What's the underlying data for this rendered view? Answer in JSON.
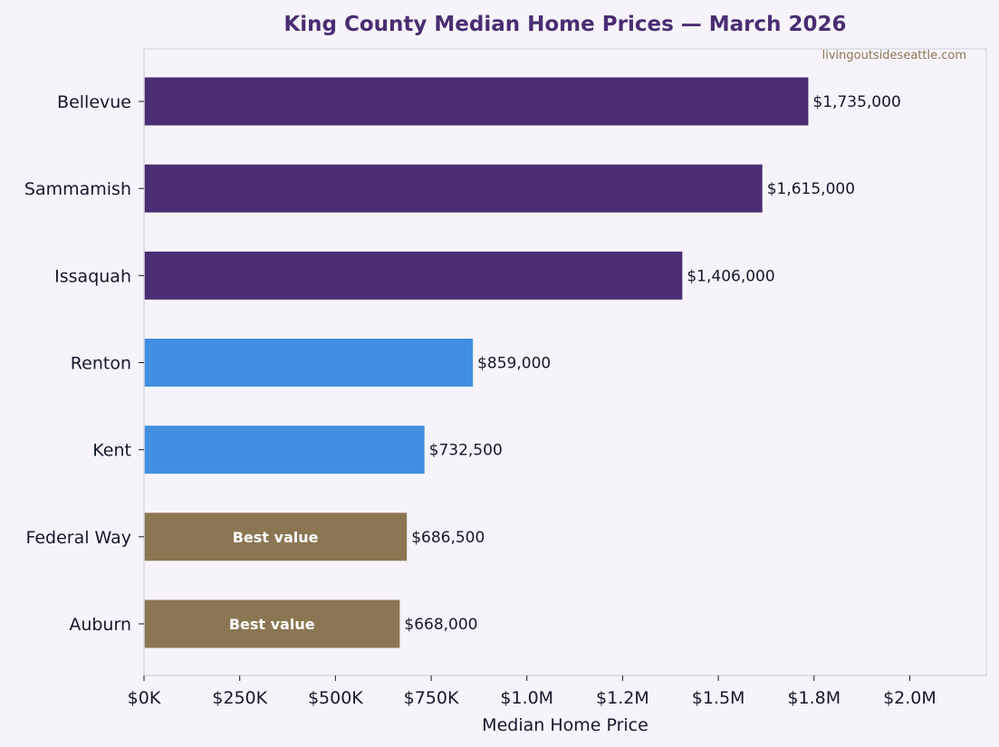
{
  "chart_data": {
    "type": "bar",
    "orientation": "horizontal",
    "title": "King County Median Home Prices — March 2026",
    "watermark": "livingoutsideseattle.com",
    "xlabel": "Median Home Price",
    "ylabel": "",
    "xlim": [
      0,
      2200000
    ],
    "x_ticks": [
      0,
      250000,
      500000,
      750000,
      1000000,
      1250000,
      1500000,
      1750000,
      2000000
    ],
    "x_tick_labels": [
      "$0K",
      "$250K",
      "$500K",
      "$750K",
      "$1.0M",
      "$1.2M",
      "$1.5M",
      "$1.8M",
      "$2.0M"
    ],
    "grid": false,
    "categories": [
      "Bellevue",
      "Sammamish",
      "Issaquah",
      "Renton",
      "Kent",
      "Federal Way",
      "Auburn"
    ],
    "values": [
      1735000,
      1615000,
      1406000,
      859000,
      732500,
      686500,
      668000
    ],
    "value_labels": [
      "$1,735,000",
      "$1,615,000",
      "$1,406,000",
      "$859,000",
      "$732,500",
      "$686,500",
      "$668,000"
    ],
    "bar_colors": [
      "#4a2d72",
      "#4a2d72",
      "#4a2d72",
      "#418fe0",
      "#418fe0",
      "#8b7653",
      "#8b7653"
    ],
    "inbar_labels": [
      "",
      "",
      "",
      "",
      "",
      "Best value",
      "Best value"
    ]
  },
  "colors": {
    "background": "#f6f4fa",
    "plot_background": "#f6f4fa",
    "premium": "#4a2d72",
    "mid": "#418fe0",
    "value": "#8b7653",
    "title": "#4a2d72",
    "text": "#14192b"
  }
}
